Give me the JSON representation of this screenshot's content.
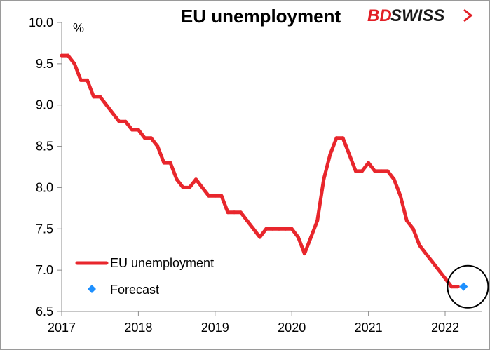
{
  "brand": {
    "part1": "BD",
    "part2": "SWISS",
    "primary_color": "#e21f26",
    "secondary_color": "#1a1a1a"
  },
  "chart_data": {
    "type": "line",
    "title": "EU unemployment",
    "ylabel": "%",
    "xlabel": "",
    "ylim": [
      6.5,
      10.0
    ],
    "y_ticks": [
      "10.0",
      "9.5",
      "9.0",
      "8.5",
      "8.0",
      "7.5",
      "7.0",
      "6.5"
    ],
    "x_ticks": [
      "2017",
      "2018",
      "2019",
      "2020",
      "2021",
      "2022"
    ],
    "legend_position": "bottom-left",
    "grid": false,
    "series": [
      {
        "name": "EU unemployment",
        "type": "line",
        "color": "#e8262c",
        "x": [
          "2017-01",
          "2017-02",
          "2017-03",
          "2017-04",
          "2017-05",
          "2017-06",
          "2017-07",
          "2017-08",
          "2017-09",
          "2017-10",
          "2017-11",
          "2017-12",
          "2018-01",
          "2018-02",
          "2018-03",
          "2018-04",
          "2018-05",
          "2018-06",
          "2018-07",
          "2018-08",
          "2018-09",
          "2018-10",
          "2018-11",
          "2018-12",
          "2019-01",
          "2019-02",
          "2019-03",
          "2019-04",
          "2019-05",
          "2019-06",
          "2019-07",
          "2019-08",
          "2019-09",
          "2019-10",
          "2019-11",
          "2019-12",
          "2020-01",
          "2020-02",
          "2020-03",
          "2020-04",
          "2020-05",
          "2020-06",
          "2020-07",
          "2020-08",
          "2020-09",
          "2020-10",
          "2020-11",
          "2020-12",
          "2021-01",
          "2021-02",
          "2021-03",
          "2021-04",
          "2021-05",
          "2021-06",
          "2021-07",
          "2021-08",
          "2021-09",
          "2021-10",
          "2021-11",
          "2021-12",
          "2022-01",
          "2022-02",
          "2022-03"
        ],
        "values": [
          9.6,
          9.6,
          9.5,
          9.3,
          9.3,
          9.1,
          9.1,
          9.0,
          8.9,
          8.8,
          8.8,
          8.7,
          8.7,
          8.6,
          8.6,
          8.5,
          8.3,
          8.3,
          8.1,
          8.0,
          8.0,
          8.1,
          8.0,
          7.9,
          7.9,
          7.9,
          7.7,
          7.7,
          7.7,
          7.6,
          7.5,
          7.4,
          7.5,
          7.5,
          7.5,
          7.5,
          7.5,
          7.4,
          7.2,
          7.4,
          7.6,
          8.1,
          8.4,
          8.6,
          8.6,
          8.4,
          8.2,
          8.2,
          8.3,
          8.2,
          8.2,
          8.2,
          8.1,
          7.9,
          7.6,
          7.5,
          7.3,
          7.2,
          7.1,
          7.0,
          6.9,
          6.8,
          6.8
        ]
      },
      {
        "name": "Forecast",
        "type": "scatter",
        "marker": "diamond",
        "color": "#1e90ff",
        "x": [
          "2022-04"
        ],
        "values": [
          6.8
        ]
      }
    ],
    "annotations": [
      {
        "type": "circle",
        "target": "Forecast",
        "color": "#000000"
      }
    ]
  }
}
